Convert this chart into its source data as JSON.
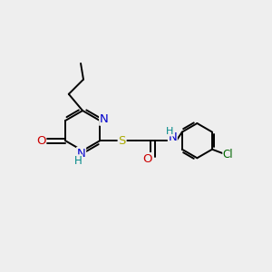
{
  "bg_color": "#eeeeee",
  "atom_colors": {
    "C": "#000000",
    "N": "#0000cc",
    "O": "#cc0000",
    "S": "#aaaa00",
    "Cl": "#006600",
    "H": "#008888"
  },
  "bond_color": "#000000",
  "bond_width": 1.4,
  "font_size": 8.5,
  "ring_r": 0.75,
  "benz_r": 0.65
}
